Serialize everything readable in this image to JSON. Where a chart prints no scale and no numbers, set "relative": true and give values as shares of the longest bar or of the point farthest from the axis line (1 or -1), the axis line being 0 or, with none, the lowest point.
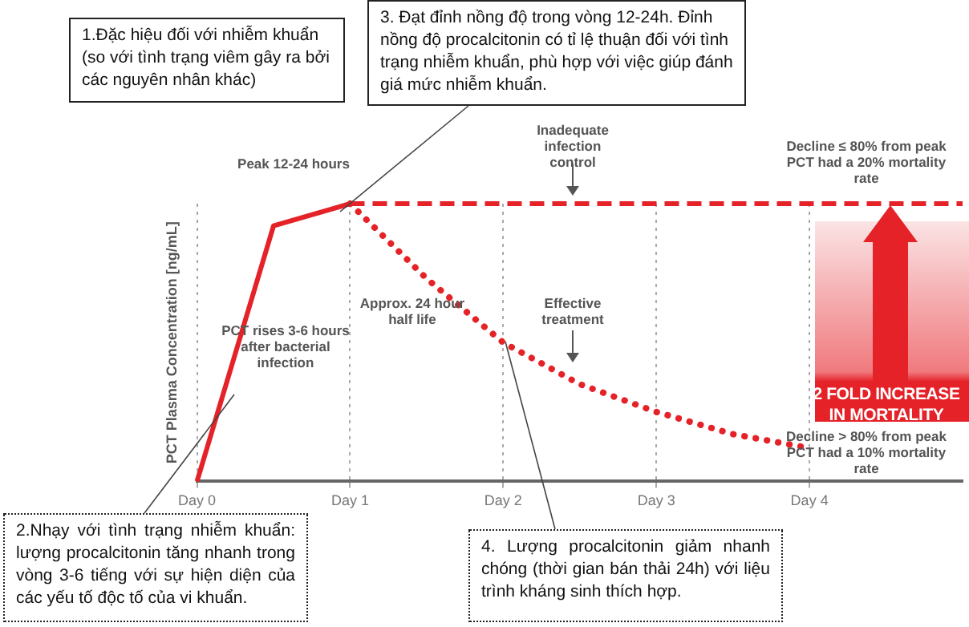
{
  "chart_data": {
    "type": "line",
    "relative": true,
    "ylabel": "PCT Plasma Concentration [ng/mL]",
    "categories": [
      "Day 0",
      null,
      "Day 1",
      null,
      "Day 2",
      null,
      "Day 3",
      null,
      "Day 4",
      null,
      null
    ],
    "series": [
      {
        "color": "#e42228",
        "line_style": "solid",
        "values": [
          0,
          0.92,
          1,
          null,
          null,
          null,
          null,
          null,
          null,
          null,
          null
        ]
      },
      {
        "color": "#e42228",
        "line_style": "dashed",
        "values": [
          null,
          null,
          1,
          1,
          1,
          1,
          1,
          1,
          1,
          1,
          1
        ]
      },
      {
        "color": "#e42228",
        "line_style": "dotted",
        "values": [
          null,
          null,
          1,
          0.73,
          0.5,
          0.35,
          0.25,
          0.17,
          0.12,
          null,
          null
        ]
      }
    ],
    "marker": "none",
    "grid": "x",
    "legend": false,
    "annotations": [
      "Peak 12-24 hours",
      "PCT rises 3-6 hours after bacterial infection",
      "Approx. 24 hour half life",
      "Inadequate infection control",
      "Effective treatment",
      "Decline ≤ 80% from peak PCT had a 20% mortality rate",
      "Decline > 80% from peak PCT had a 10% mortality rate",
      "2 FOLD INCREASE IN MORTALITY",
      "1.Đặc hiệu đối với nhiễm khuẩn (so với tình trạng viêm gây ra bởi các nguyên nhân khác)",
      "3. Đạt đỉnh nồng độ trong vòng 12-24h. Đỉnh nồng độ procalcitonin có tỉ lệ thuận đối với tình trạng nhiễm khuẩn, phù hợp với việc giúp đánh giá mức nhiễm khuẩn.",
      "2.Nhạy với tình trạng nhiễm khuẩn: lượng procalcitonin tăng nhanh trong vòng 3-6 tiếng với sự hiện diện của các yếu tố độc tố của vi khuẩn.",
      "4. Lượng procalcitonin giảm nhanh chóng (thời gian bán thải 24h) với liệu trình kháng sinh thích hợp."
    ]
  }
}
